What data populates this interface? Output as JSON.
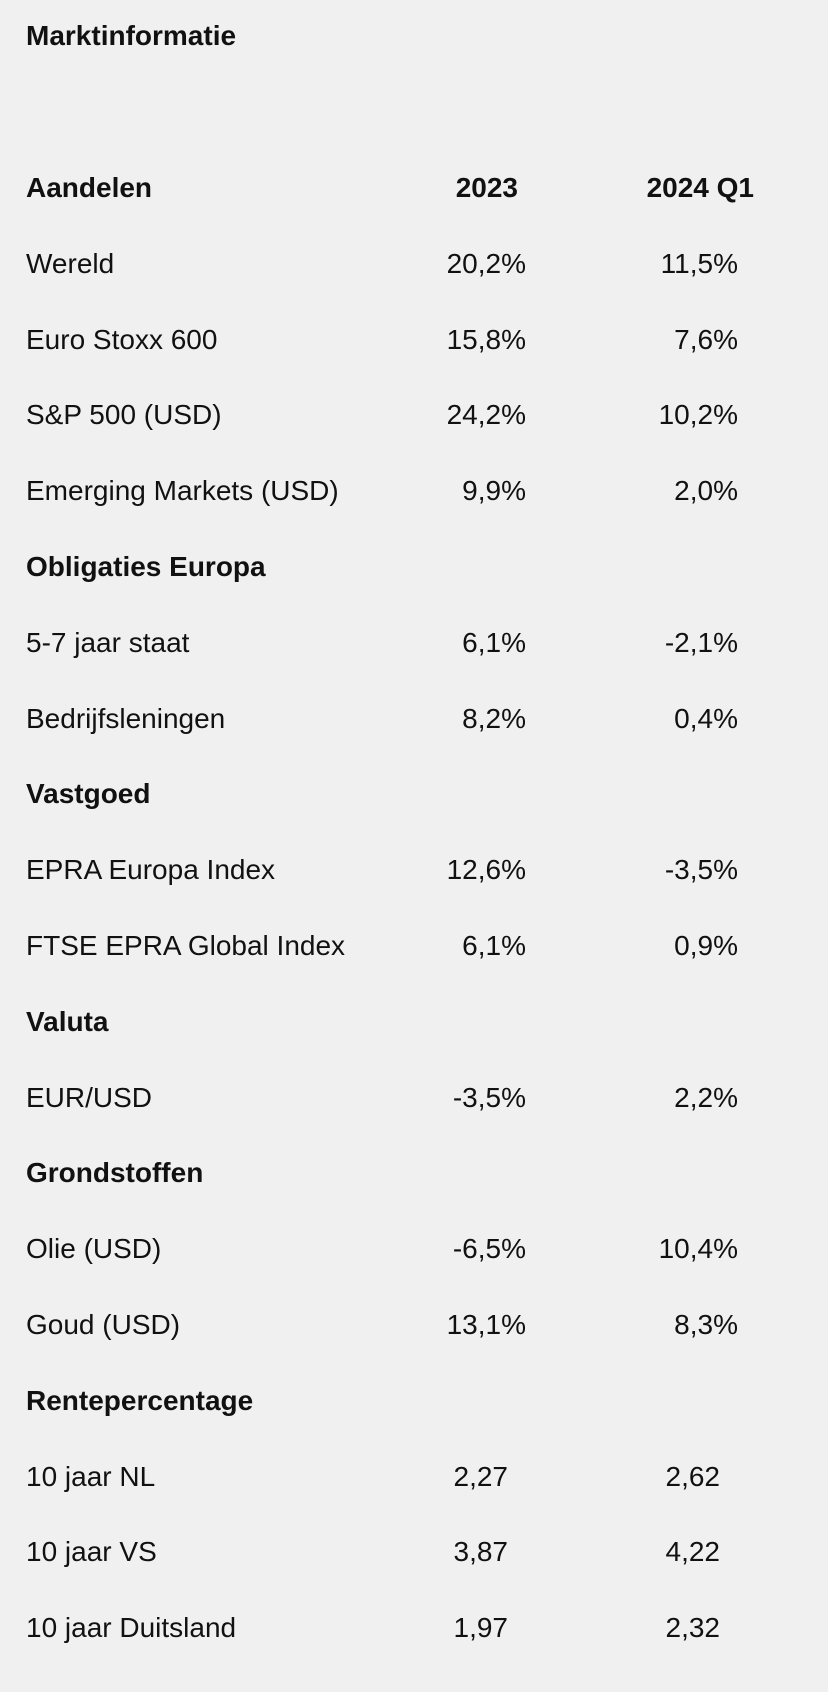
{
  "page": {
    "title": "Marktinformatie"
  },
  "table": {
    "header": {
      "label": "Aandelen",
      "col_2023": "2023",
      "col_q1": "2024 Q1"
    },
    "rows": [
      {
        "label": "Wereld",
        "v2023": "20,2%",
        "vq1": "11,5%"
      },
      {
        "label": "Euro Stoxx 600",
        "v2023": "15,8%",
        "vq1": "7,6%"
      },
      {
        "label": "S&P 500 (USD)",
        "v2023": "24,2%",
        "vq1": "10,2%"
      },
      {
        "label": "Emerging Markets (USD)",
        "v2023": "9,9%",
        "vq1": "2,0%"
      },
      {
        "section": "Obligaties Europa"
      },
      {
        "label": "5-7 jaar staat",
        "v2023": "6,1%",
        "vq1": "-2,1%"
      },
      {
        "label": "Bedrijfsleningen",
        "v2023": "8,2%",
        "vq1": "0,4%"
      },
      {
        "section": "Vastgoed"
      },
      {
        "label": "EPRA Europa Index",
        "v2023": "12,6%",
        "vq1": "-3,5%"
      },
      {
        "label": "FTSE EPRA Global Index",
        "v2023": "6,1%",
        "vq1": "0,9%"
      },
      {
        "section": "Valuta"
      },
      {
        "label": "EUR/USD",
        "v2023": "-3,5%",
        "vq1": "2,2%"
      },
      {
        "section": "Grondstoffen"
      },
      {
        "label": "Olie (USD)",
        "v2023": "-6,5%",
        "vq1": "10,4%"
      },
      {
        "label": "Goud (USD)",
        "v2023": "13,1%",
        "vq1": "8,3%"
      },
      {
        "section": "Rentepercentage"
      },
      {
        "label": "10 jaar NL",
        "v2023": "2,27",
        "vq1": "2,62"
      },
      {
        "label": "10 jaar VS",
        "v2023": "3,87",
        "vq1": "4,22"
      },
      {
        "label": "10 jaar Duitsland",
        "v2023": "1,97",
        "vq1": "2,32"
      }
    ]
  }
}
